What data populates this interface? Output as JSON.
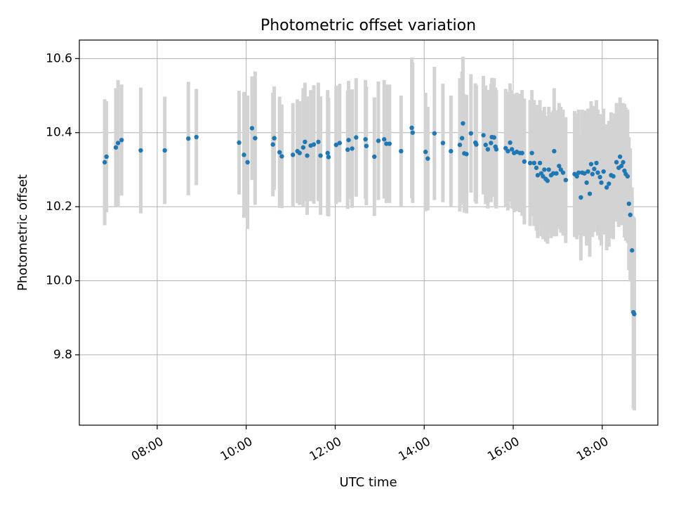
{
  "chart_data": {
    "type": "scatter",
    "title": "Photometric offset variation",
    "xlabel": "UTC time",
    "ylabel": "Photometric offset",
    "x_unit": "hours (UTC)",
    "xlim": [
      6.25,
      19.25
    ],
    "ylim": [
      9.61,
      10.65
    ],
    "x_ticks": [
      {
        "value": 8,
        "label": "08:00"
      },
      {
        "value": 10,
        "label": "10:00"
      },
      {
        "value": 12,
        "label": "12:00"
      },
      {
        "value": 14,
        "label": "14:00"
      },
      {
        "value": 16,
        "label": "16:00"
      },
      {
        "value": 18,
        "label": "18:00"
      }
    ],
    "y_ticks": [
      {
        "value": 9.8,
        "label": "9.8"
      },
      {
        "value": 10.0,
        "label": "10.0"
      },
      {
        "value": 10.2,
        "label": "10.2"
      },
      {
        "value": 10.4,
        "label": "10.4"
      },
      {
        "value": 10.6,
        "label": "10.6"
      }
    ],
    "grid": true,
    "colors": {
      "point": "#1f77b4",
      "errorbar": "#d3d3d3",
      "grid": "#b0b0b0"
    },
    "series": [
      {
        "points": [
          [
            6.82,
            10.32,
            0.17
          ],
          [
            6.86,
            10.335,
            0.15
          ],
          [
            7.07,
            10.36,
            0.16
          ],
          [
            7.12,
            10.372,
            0.17
          ],
          [
            7.2,
            10.38,
            0.15
          ],
          [
            7.63,
            10.352,
            0.17
          ],
          [
            8.17,
            10.352,
            0.145
          ],
          [
            8.7,
            10.384,
            0.153
          ],
          [
            8.88,
            10.388,
            0.13
          ],
          [
            9.84,
            10.373,
            0.14
          ],
          [
            9.95,
            10.34,
            0.17
          ],
          [
            10.03,
            10.32,
            0.18
          ],
          [
            10.13,
            10.412,
            0.14
          ],
          [
            10.2,
            10.385,
            0.18
          ],
          [
            10.6,
            10.368,
            0.14
          ],
          [
            10.63,
            10.385,
            0.14
          ],
          [
            10.75,
            10.347,
            0.15
          ],
          [
            10.8,
            10.336,
            0.14
          ],
          [
            11.05,
            10.34,
            0.14
          ],
          [
            11.15,
            10.35,
            0.14
          ],
          [
            11.2,
            10.345,
            0.14
          ],
          [
            11.28,
            10.36,
            0.16
          ],
          [
            11.32,
            10.375,
            0.16
          ],
          [
            11.37,
            10.338,
            0.16
          ],
          [
            11.45,
            10.365,
            0.15
          ],
          [
            11.52,
            10.368,
            0.16
          ],
          [
            11.62,
            10.375,
            0.16
          ],
          [
            11.67,
            10.338,
            0.16
          ],
          [
            11.83,
            10.345,
            0.17
          ],
          [
            11.85,
            10.334,
            0.16
          ],
          [
            12.02,
            10.367,
            0.16
          ],
          [
            12.1,
            10.372,
            0.16
          ],
          [
            12.28,
            10.354,
            0.16
          ],
          [
            12.3,
            10.38,
            0.16
          ],
          [
            12.38,
            10.357,
            0.16
          ],
          [
            12.47,
            10.387,
            0.16
          ],
          [
            12.68,
            10.382,
            0.16
          ],
          [
            12.7,
            10.364,
            0.16
          ],
          [
            12.88,
            10.335,
            0.16
          ],
          [
            12.97,
            10.378,
            0.16
          ],
          [
            13.1,
            10.382,
            0.16
          ],
          [
            13.15,
            10.37,
            0.16
          ],
          [
            13.22,
            10.37,
            0.16
          ],
          [
            13.48,
            10.35,
            0.15
          ],
          [
            13.72,
            10.413,
            0.19
          ],
          [
            13.74,
            10.4,
            0.19
          ],
          [
            14.03,
            10.348,
            0.16
          ],
          [
            14.08,
            10.33,
            0.14
          ],
          [
            14.23,
            10.398,
            0.18
          ],
          [
            14.42,
            10.372,
            0.16
          ],
          [
            14.6,
            10.35,
            0.15
          ],
          [
            14.8,
            10.367,
            0.18
          ],
          [
            14.85,
            10.385,
            0.18
          ],
          [
            14.87,
            10.425,
            0.18
          ],
          [
            14.9,
            10.344,
            0.16
          ],
          [
            14.95,
            10.342,
            0.16
          ],
          [
            15.05,
            10.398,
            0.16
          ],
          [
            15.15,
            10.373,
            0.16
          ],
          [
            15.17,
            10.368,
            0.16
          ],
          [
            15.33,
            10.393,
            0.16
          ],
          [
            15.38,
            10.367,
            0.16
          ],
          [
            15.43,
            10.355,
            0.16
          ],
          [
            15.5,
            10.372,
            0.16
          ],
          [
            15.52,
            10.388,
            0.16
          ],
          [
            15.57,
            10.387,
            0.16
          ],
          [
            15.6,
            10.362,
            0.16
          ],
          [
            15.62,
            10.355,
            0.16
          ],
          [
            15.83,
            10.358,
            0.16
          ],
          [
            15.88,
            10.35,
            0.16
          ],
          [
            15.93,
            10.373,
            0.16
          ],
          [
            15.97,
            10.355,
            0.16
          ],
          [
            16.02,
            10.345,
            0.16
          ],
          [
            16.08,
            10.348,
            0.16
          ],
          [
            16.15,
            10.345,
            0.16
          ],
          [
            16.2,
            10.345,
            0.17
          ],
          [
            16.25,
            10.322,
            0.17
          ],
          [
            16.38,
            10.318,
            0.17
          ],
          [
            16.42,
            10.345,
            0.17
          ],
          [
            16.47,
            10.318,
            0.17
          ],
          [
            16.52,
            10.305,
            0.17
          ],
          [
            16.55,
            10.285,
            0.17
          ],
          [
            16.6,
            10.318,
            0.17
          ],
          [
            16.63,
            10.29,
            0.17
          ],
          [
            16.67,
            10.282,
            0.17
          ],
          [
            16.7,
            10.3,
            0.17
          ],
          [
            16.73,
            10.275,
            0.17
          ],
          [
            16.77,
            10.27,
            0.17
          ],
          [
            16.8,
            10.3,
            0.17
          ],
          [
            16.85,
            10.285,
            0.17
          ],
          [
            16.9,
            10.29,
            0.17
          ],
          [
            16.92,
            10.35,
            0.17
          ],
          [
            16.97,
            10.29,
            0.17
          ],
          [
            17.03,
            10.31,
            0.17
          ],
          [
            17.07,
            10.3,
            0.17
          ],
          [
            17.12,
            10.292,
            0.17
          ],
          [
            17.18,
            10.272,
            0.17
          ],
          [
            17.38,
            10.288,
            0.17
          ],
          [
            17.43,
            10.282,
            0.17
          ],
          [
            17.47,
            10.292,
            0.17
          ],
          [
            17.52,
            10.225,
            0.17
          ],
          [
            17.55,
            10.292,
            0.17
          ],
          [
            17.6,
            10.29,
            0.17
          ],
          [
            17.65,
            10.265,
            0.17
          ],
          [
            17.68,
            10.295,
            0.17
          ],
          [
            17.72,
            10.235,
            0.17
          ],
          [
            17.75,
            10.315,
            0.17
          ],
          [
            17.78,
            10.288,
            0.17
          ],
          [
            17.82,
            10.302,
            0.17
          ],
          [
            17.87,
            10.318,
            0.17
          ],
          [
            17.9,
            10.292,
            0.17
          ],
          [
            17.95,
            10.28,
            0.17
          ],
          [
            17.98,
            10.265,
            0.17
          ],
          [
            18.03,
            10.295,
            0.17
          ],
          [
            18.1,
            10.252,
            0.17
          ],
          [
            18.15,
            10.262,
            0.17
          ],
          [
            18.2,
            10.285,
            0.17
          ],
          [
            18.25,
            10.282,
            0.17
          ],
          [
            18.32,
            10.32,
            0.16
          ],
          [
            18.37,
            10.305,
            0.16
          ],
          [
            18.4,
            10.335,
            0.16
          ],
          [
            18.43,
            10.31,
            0.16
          ],
          [
            18.47,
            10.32,
            0.16
          ],
          [
            18.5,
            10.297,
            0.18
          ],
          [
            18.53,
            10.288,
            0.18
          ],
          [
            18.57,
            10.282,
            0.18
          ],
          [
            18.6,
            10.208,
            0.18
          ],
          [
            18.63,
            10.178,
            0.18
          ],
          [
            18.67,
            10.082,
            0.17
          ],
          [
            18.7,
            9.915,
            0.26
          ],
          [
            18.72,
            9.91,
            0.26
          ]
        ]
      }
    ]
  }
}
